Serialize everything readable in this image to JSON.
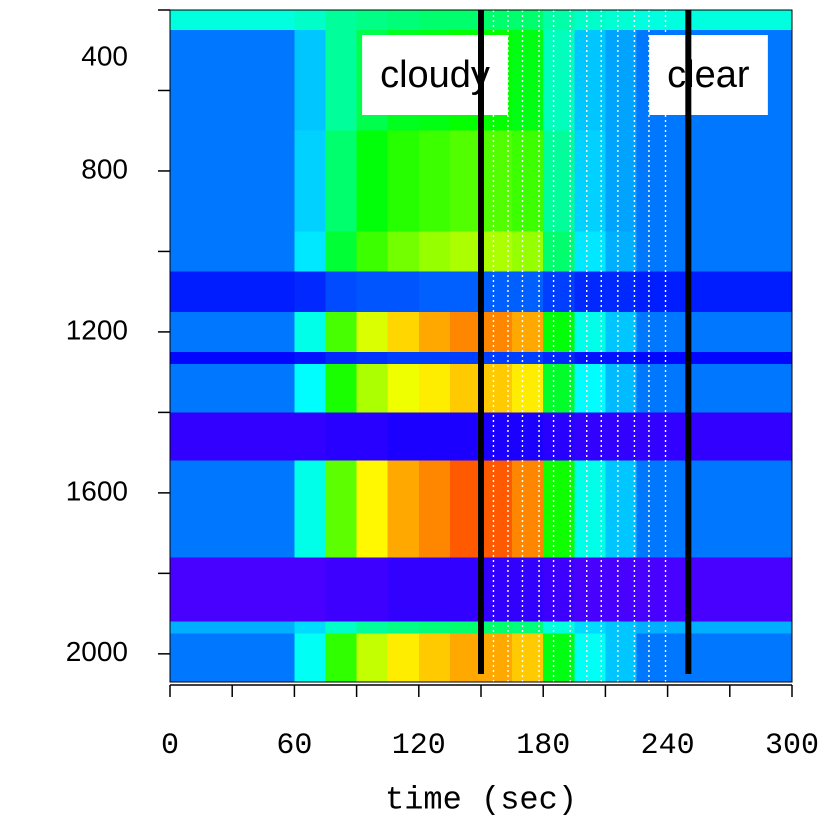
{
  "chart_data": {
    "type": "heatmap",
    "colormap": "rainbow",
    "x_label": "time (sec)",
    "xlim": [
      0,
      300
    ],
    "xticks": [
      0,
      60,
      120,
      180,
      240,
      300
    ],
    "xminorticks": [
      30,
      90,
      150,
      210,
      270
    ],
    "ylim": [
      400,
      2070
    ],
    "yticks": [
      400,
      800,
      1200,
      1600,
      2000
    ],
    "yminorticks": [
      600,
      1000,
      1400,
      1800
    ],
    "x_edges": [
      0,
      15,
      30,
      45,
      60,
      75,
      90,
      105,
      120,
      135,
      150,
      165,
      180,
      195,
      210,
      225,
      240,
      255,
      270,
      285,
      300
    ],
    "y_edges": [
      400,
      450,
      700,
      950,
      1050,
      1150,
      1250,
      1280,
      1400,
      1520,
      1760,
      1920,
      1950,
      2070
    ],
    "z": [
      [
        0.35,
        0.35,
        0.35,
        0.35,
        0.37,
        0.41,
        0.43,
        0.44,
        0.45,
        0.45,
        0.45,
        0.45,
        0.4,
        0.37,
        0.36,
        0.35,
        0.35,
        0.35,
        0.35,
        0.35
      ],
      [
        0.2,
        0.2,
        0.2,
        0.2,
        0.27,
        0.41,
        0.48,
        0.52,
        0.53,
        0.55,
        0.55,
        0.53,
        0.38,
        0.27,
        0.24,
        0.2,
        0.2,
        0.2,
        0.2,
        0.2
      ],
      [
        0.2,
        0.2,
        0.2,
        0.2,
        0.28,
        0.45,
        0.54,
        0.58,
        0.6,
        0.62,
        0.62,
        0.6,
        0.41,
        0.28,
        0.24,
        0.2,
        0.2,
        0.2,
        0.2,
        0.2
      ],
      [
        0.2,
        0.2,
        0.2,
        0.2,
        0.3,
        0.5,
        0.6,
        0.65,
        0.68,
        0.7,
        0.7,
        0.68,
        0.45,
        0.3,
        0.25,
        0.2,
        0.2,
        0.2,
        0.2,
        0.2
      ],
      [
        0.12,
        0.12,
        0.12,
        0.12,
        0.13,
        0.16,
        0.17,
        0.17,
        0.18,
        0.18,
        0.18,
        0.18,
        0.15,
        0.13,
        0.13,
        0.12,
        0.12,
        0.12,
        0.12,
        0.12
      ],
      [
        0.2,
        0.2,
        0.2,
        0.2,
        0.34,
        0.61,
        0.74,
        0.81,
        0.85,
        0.88,
        0.88,
        0.85,
        0.54,
        0.34,
        0.27,
        0.2,
        0.2,
        0.2,
        0.2,
        0.2
      ],
      [
        0.1,
        0.1,
        0.1,
        0.1,
        0.11,
        0.13,
        0.14,
        0.15,
        0.15,
        0.15,
        0.15,
        0.15,
        0.13,
        0.11,
        0.11,
        0.1,
        0.1,
        0.1,
        0.1,
        0.1
      ],
      [
        0.2,
        0.2,
        0.2,
        0.2,
        0.32,
        0.57,
        0.7,
        0.76,
        0.79,
        0.82,
        0.82,
        0.79,
        0.51,
        0.32,
        0.26,
        0.2,
        0.2,
        0.2,
        0.2,
        0.2
      ],
      [
        0.05,
        0.05,
        0.05,
        0.05,
        0.05,
        0.06,
        0.06,
        0.07,
        0.07,
        0.07,
        0.07,
        0.07,
        0.06,
        0.05,
        0.05,
        0.05,
        0.05,
        0.05,
        0.05,
        0.05
      ],
      [
        0.2,
        0.2,
        0.2,
        0.2,
        0.34,
        0.63,
        0.78,
        0.85,
        0.88,
        0.92,
        0.92,
        0.88,
        0.56,
        0.34,
        0.27,
        0.2,
        0.2,
        0.2,
        0.2,
        0.2
      ],
      [
        0.03,
        0.03,
        0.03,
        0.03,
        0.03,
        0.04,
        0.04,
        0.05,
        0.05,
        0.05,
        0.05,
        0.05,
        0.04,
        0.03,
        0.03,
        0.03,
        0.03,
        0.03,
        0.03,
        0.03
      ],
      [
        0.25,
        0.25,
        0.25,
        0.25,
        0.29,
        0.37,
        0.41,
        0.43,
        0.44,
        0.45,
        0.45,
        0.44,
        0.35,
        0.29,
        0.27,
        0.25,
        0.25,
        0.25,
        0.25,
        0.25
      ],
      [
        0.2,
        0.2,
        0.2,
        0.2,
        0.33,
        0.59,
        0.72,
        0.79,
        0.82,
        0.85,
        0.85,
        0.82,
        0.53,
        0.33,
        0.27,
        0.2,
        0.2,
        0.2,
        0.2,
        0.2
      ]
    ],
    "markers": [
      {
        "label": "cloudy",
        "x": 150
      },
      {
        "label": "clear",
        "x": 250
      }
    ],
    "dotted_lines": [
      156,
      163,
      170,
      178,
      185,
      193,
      201,
      208,
      216,
      224,
      231,
      239
    ]
  }
}
